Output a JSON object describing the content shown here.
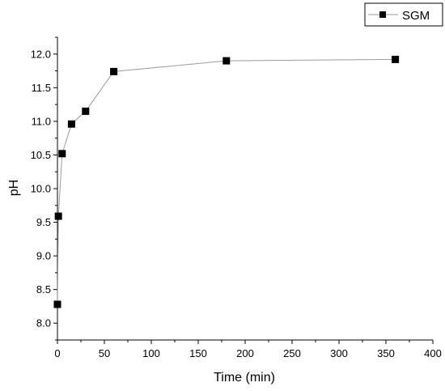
{
  "chart_data": {
    "type": "scatter",
    "xlabel": "Time (min)",
    "ylabel": "pH",
    "xlim": [
      0,
      400
    ],
    "ylim": [
      7.75,
      12.25
    ],
    "xticks": [
      0,
      50,
      100,
      150,
      200,
      250,
      300,
      350,
      400
    ],
    "yticks": [
      8.0,
      8.5,
      9.0,
      9.5,
      10.0,
      10.5,
      11.0,
      11.5,
      12.0
    ],
    "xtick_labels": [
      "0",
      "50",
      "100",
      "150",
      "200",
      "250",
      "300",
      "350",
      "400"
    ],
    "ytick_labels": [
      "8.0",
      "8.5",
      "9.0",
      "9.5",
      "10.0",
      "10.5",
      "11.0",
      "11.5",
      "12.0"
    ],
    "grid": false,
    "legend_position": "top-right",
    "series": [
      {
        "name": "SGM",
        "marker": "square",
        "line": true,
        "color": "#000000",
        "line_color": "#9a9a9a",
        "x": [
          0,
          1,
          5,
          15,
          30,
          60,
          180,
          360
        ],
        "y": [
          8.28,
          9.59,
          10.52,
          10.96,
          11.15,
          11.74,
          11.9,
          11.92
        ]
      }
    ]
  }
}
